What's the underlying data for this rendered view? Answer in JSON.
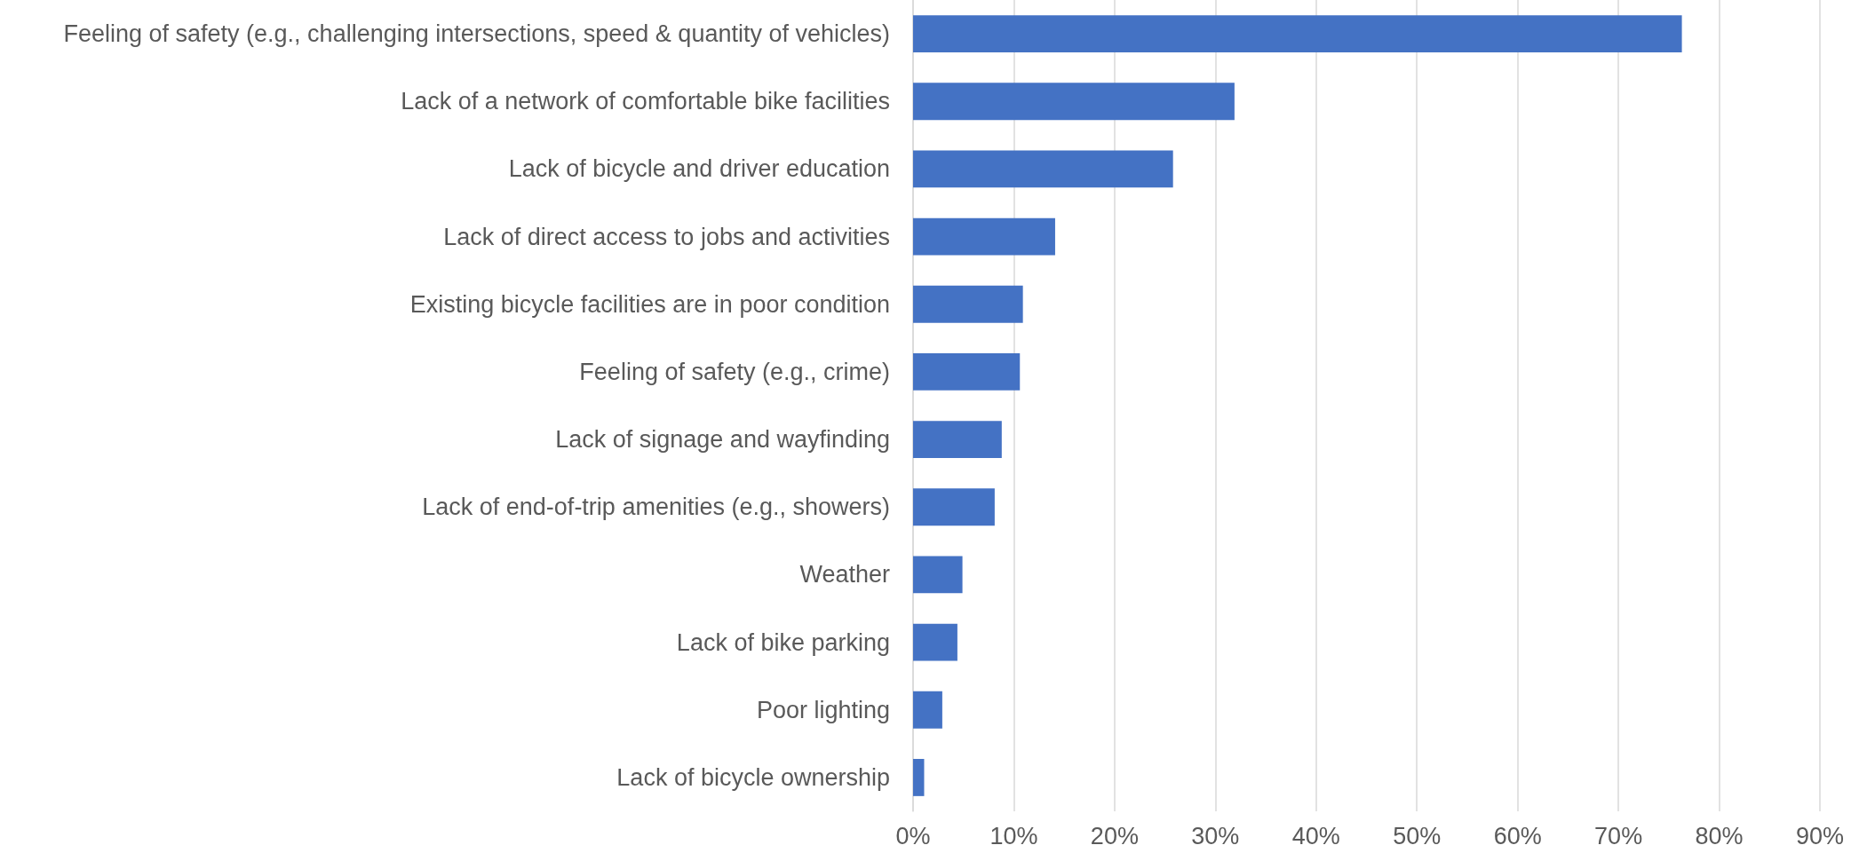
{
  "chart_data": {
    "type": "bar",
    "orientation": "horizontal",
    "categories": [
      "Feeling of safety (e.g., challenging intersections, speed & quantity of vehicles)",
      "Lack of a network of comfortable bike facilities",
      "Lack of bicycle and driver education",
      "Lack of direct access to jobs and activities",
      "Existing bicycle facilities are in poor condition",
      "Feeling of safety (e.g., crime)",
      "Lack of signage and wayfinding",
      "Lack of end-of-trip amenities (e.g., showers)",
      "Weather",
      "Lack of bike parking",
      "Poor lighting",
      "Lack of bicycle ownership"
    ],
    "values": [
      76.3,
      31.9,
      25.8,
      14.1,
      10.9,
      10.6,
      8.8,
      8.1,
      4.9,
      4.4,
      2.9,
      1.1
    ],
    "color": "#4472c4",
    "xlim": [
      0,
      90
    ],
    "xticks": [
      {
        "value": 0,
        "label": "0%"
      },
      {
        "value": 10,
        "label": "10%"
      },
      {
        "value": 20,
        "label": "20%"
      },
      {
        "value": 30,
        "label": "30%"
      },
      {
        "value": 40,
        "label": "40%"
      },
      {
        "value": 50,
        "label": "50%"
      },
      {
        "value": 60,
        "label": "60%"
      },
      {
        "value": 70,
        "label": "70%"
      },
      {
        "value": 80,
        "label": "80%"
      },
      {
        "value": 90,
        "label": "90%"
      }
    ],
    "grid": "x"
  }
}
